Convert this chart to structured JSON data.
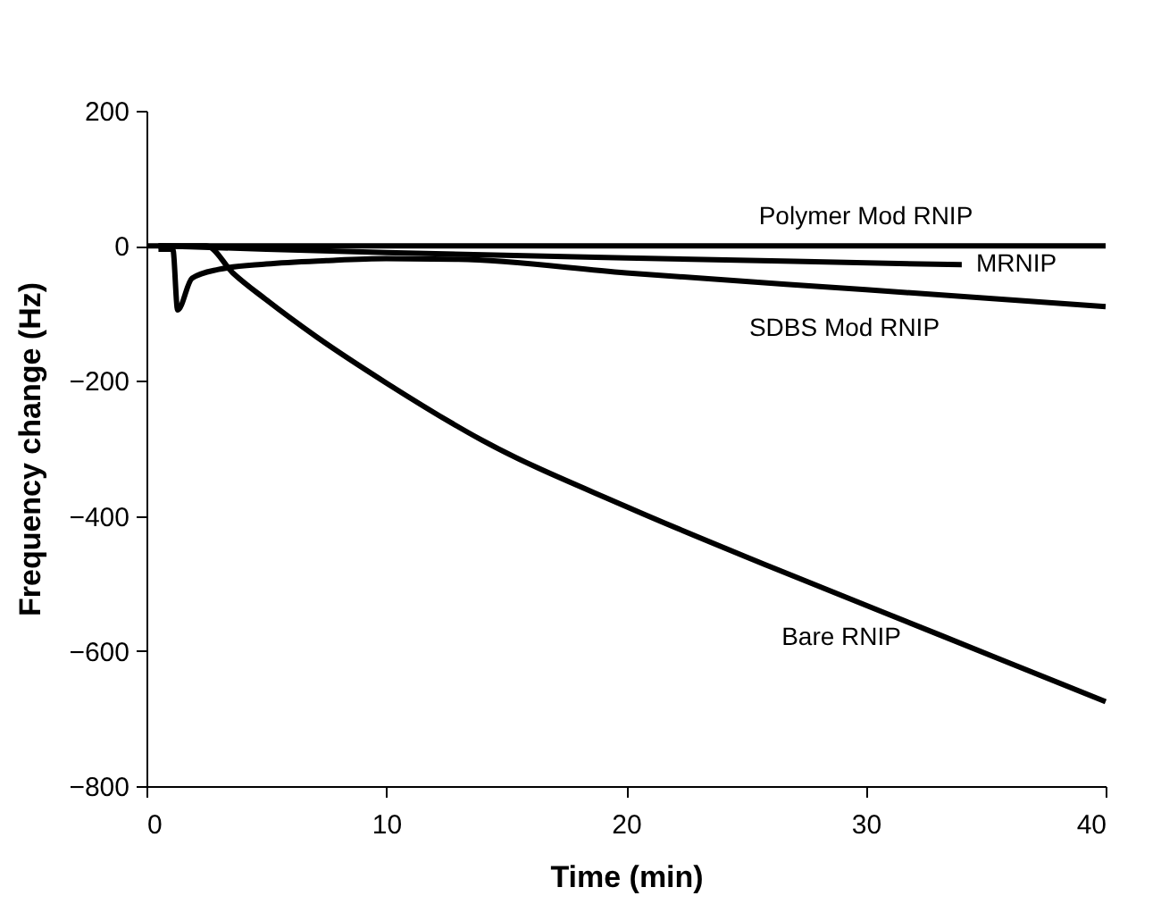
{
  "chart_data": {
    "type": "line",
    "xlabel": "Time (min)",
    "ylabel": "Frequency change (Hz)",
    "xlim": [
      0,
      40
    ],
    "xticks": [
      0,
      10,
      20,
      30,
      40
    ],
    "ylim": [
      -800,
      200
    ],
    "yticks": [
      -800,
      -600,
      -400,
      -200,
      0,
      200
    ],
    "grid": false,
    "marker": "none",
    "line_style": "solid",
    "series": [
      {
        "name": "Polymer Mod RNIP",
        "color": "#000000",
        "x": [
          0,
          10,
          20,
          30,
          40
        ],
        "values": [
          0,
          0,
          0,
          0,
          0
        ]
      },
      {
        "name": "MRNIP",
        "color": "#000000",
        "x": [
          0.5,
          5,
          10,
          20,
          27,
          34
        ],
        "values": [
          0,
          -5,
          -10,
          -18,
          -23,
          -28
        ]
      },
      {
        "name": "SDBS Mod RNIP",
        "color": "#000000",
        "x": [
          0.5,
          1.1,
          1.3,
          1.9,
          3,
          5,
          7.5,
          10,
          13,
          20,
          30,
          40
        ],
        "values": [
          -5,
          -5,
          -95,
          -48,
          -35,
          -27,
          -22,
          -19,
          -20,
          -40,
          -65,
          -90
        ]
      },
      {
        "name": "Bare RNIP",
        "color": "#000000",
        "x": [
          0.5,
          2.5,
          3.6,
          5,
          7.1,
          10,
          14,
          20,
          26,
          33,
          40
        ],
        "values": [
          0,
          0,
          -40,
          -80,
          -135,
          -203,
          -288,
          -386,
          -475,
          -575,
          -675
        ]
      }
    ]
  }
}
